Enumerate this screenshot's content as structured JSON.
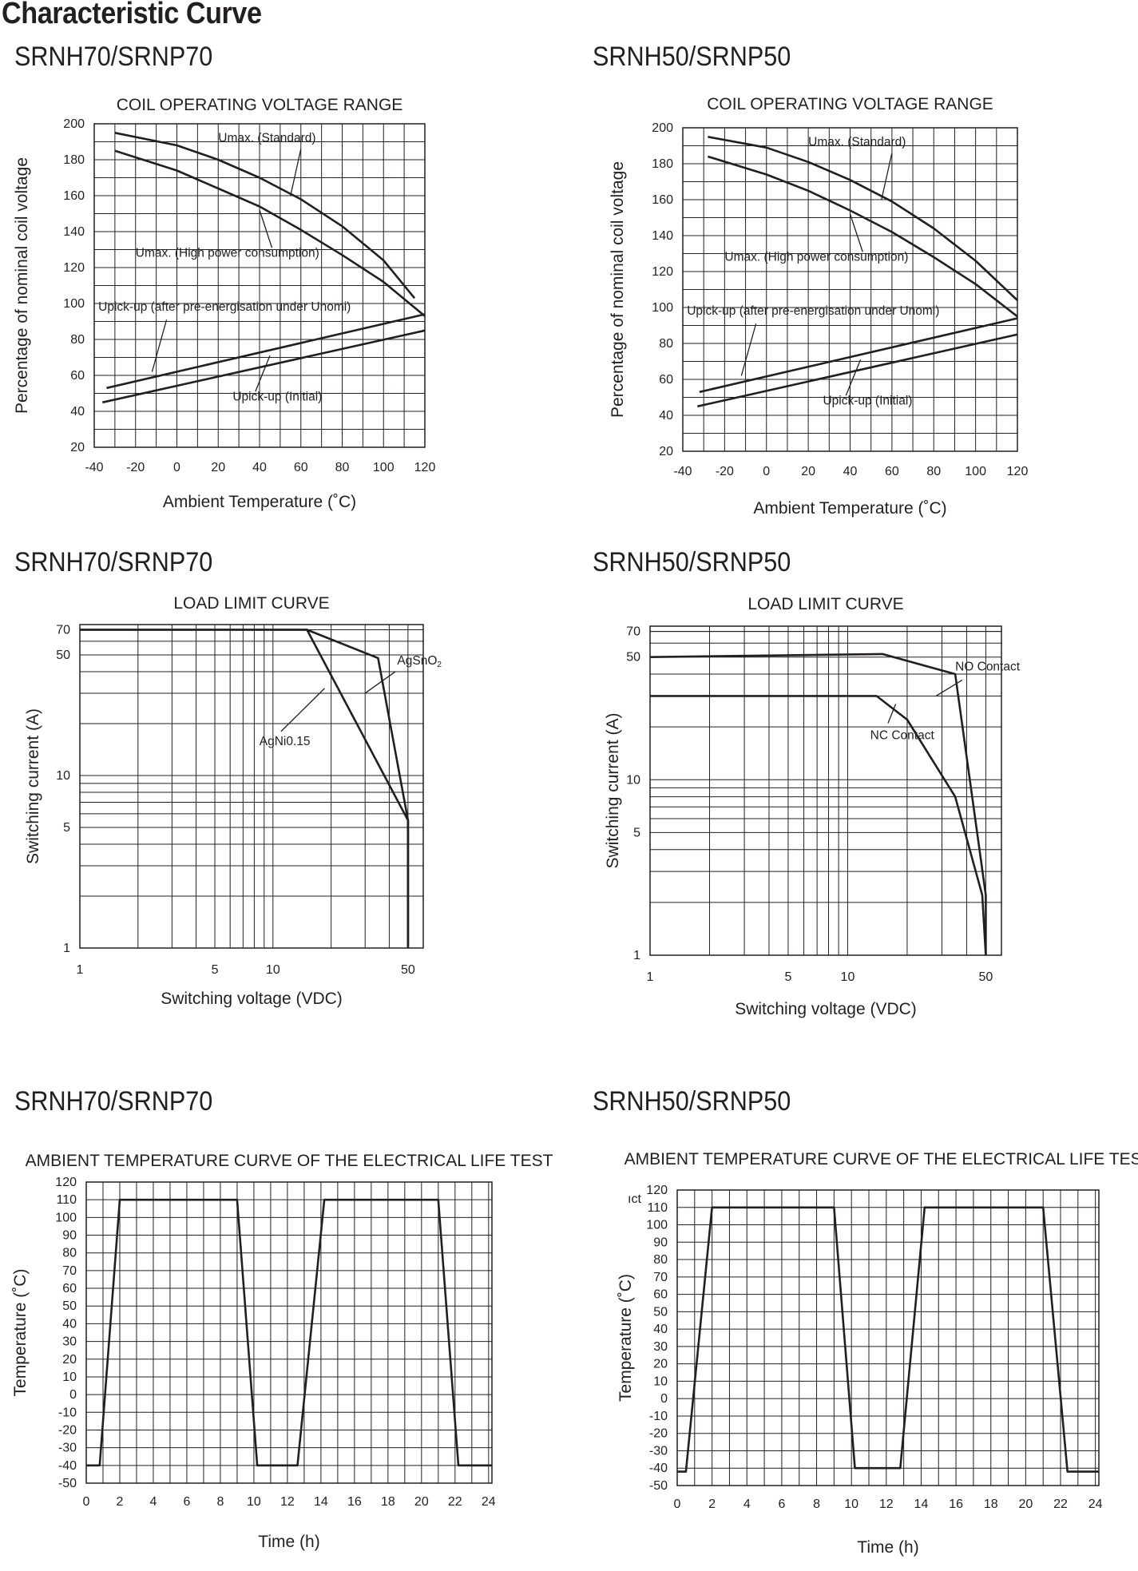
{
  "page_title": "Characteristic Curve",
  "chart_data": [
    {
      "id": "coil-70",
      "type": "line",
      "model": "SRNH70/SRNP70",
      "title": "COIL OPERATING VOLTAGE RANGE",
      "xlabel": "Ambient Temperature (˚C)",
      "ylabel": "Percentage of nominal coil voltage",
      "xlim": [
        -40,
        120
      ],
      "ylim": [
        20,
        200
      ],
      "xticks": [
        "-40",
        "-20",
        "0",
        "20",
        "40",
        "60",
        "80",
        "100",
        "120"
      ],
      "yticks": [
        "20",
        "40",
        "60",
        "80",
        "100",
        "120",
        "140",
        "160",
        "180",
        "200"
      ],
      "grid": true,
      "series": [
        {
          "name": "Umax. (Standard)",
          "x": [
            -30,
            0,
            20,
            40,
            60,
            80,
            100,
            115
          ],
          "y": [
            195,
            188,
            180,
            170,
            158,
            143,
            124,
            103
          ]
        },
        {
          "name": "Umax. (High power consumption)",
          "x": [
            -30,
            0,
            20,
            40,
            60,
            80,
            100,
            120
          ],
          "y": [
            185,
            174,
            164,
            154,
            141,
            127,
            112,
            93
          ]
        },
        {
          "name": "Upick-up (after pre-energisation under Unomi)",
          "x": [
            -34,
            120
          ],
          "y": [
            53,
            94
          ]
        },
        {
          "name": "Upick-up (Initial)",
          "x": [
            -36,
            120
          ],
          "y": [
            45,
            85
          ]
        }
      ],
      "annotations": [
        "Umax. (Standard)",
        "Umax. (High power consumption)",
        "Upick-up (after pre-energisation under Unomi)",
        "Upick-up (Initial)"
      ]
    },
    {
      "id": "coil-50",
      "type": "line",
      "model": "SRNH50/SRNP50",
      "title": "COIL OPERATING VOLTAGE RANGE",
      "xlabel": "Ambient Temperature (˚C)",
      "ylabel": "Percentage of nominal coil voltage",
      "xlim": [
        -40,
        120
      ],
      "ylim": [
        20,
        200
      ],
      "xticks": [
        "-40",
        "-20",
        "0",
        "20",
        "40",
        "60",
        "80",
        "100",
        "120"
      ],
      "yticks": [
        "20",
        "40",
        "60",
        "80",
        "100",
        "120",
        "140",
        "160",
        "180",
        "200"
      ],
      "grid": true,
      "series": [
        {
          "name": "Umax. (Standard)",
          "x": [
            -28,
            0,
            20,
            40,
            60,
            80,
            100,
            120
          ],
          "y": [
            195,
            189,
            181,
            171,
            159,
            144,
            126,
            104
          ]
        },
        {
          "name": "Umax. (High power consumption)",
          "x": [
            -28,
            0,
            20,
            40,
            60,
            80,
            100,
            120
          ],
          "y": [
            184,
            174,
            165,
            154,
            142,
            128,
            113,
            95
          ]
        },
        {
          "name": "Upick-up (after pre-energisation under Unomi)",
          "x": [
            -32,
            120
          ],
          "y": [
            53,
            94
          ]
        },
        {
          "name": "Upick-up (Initial)",
          "x": [
            -33,
            120
          ],
          "y": [
            45,
            85
          ]
        }
      ],
      "annotations": [
        "Umax. (Standard)",
        "Umax. (High power consumption)",
        "Upick-up (after pre-energisation under Unomi)",
        "Upick-up (Initial)"
      ]
    },
    {
      "id": "load-70",
      "type": "line",
      "scale": "log-log",
      "model": "SRNH70/SRNP70",
      "title": "LOAD LIMIT CURVE",
      "xlabel": "Switching voltage (VDC)",
      "ylabel": "Switching current (A)",
      "xlim": [
        1,
        60
      ],
      "ylim": [
        1,
        75
      ],
      "xticks": [
        1,
        5,
        10,
        50
      ],
      "yticks": [
        1,
        5,
        10,
        50,
        70
      ],
      "grid": true,
      "series": [
        {
          "name": "AgSnO2",
          "x": [
            1,
            15,
            35,
            50,
            50
          ],
          "y": [
            70,
            70,
            48,
            5.5,
            1
          ]
        },
        {
          "name": "AgNi0.15",
          "x": [
            1,
            15,
            50,
            50
          ],
          "y": [
            70,
            70,
            5.5,
            1
          ]
        }
      ],
      "annotations": [
        "AgSnO2",
        "AgNi0.15"
      ]
    },
    {
      "id": "load-50",
      "type": "line",
      "scale": "log-log",
      "model": "SRNH50/SRNP50",
      "title": "LOAD LIMIT CURVE",
      "xlabel": "Switching voltage (VDC)",
      "ylabel": "Switching current (A)",
      "xlim": [
        1,
        60
      ],
      "ylim": [
        1,
        75
      ],
      "xticks": [
        1,
        5,
        10,
        50
      ],
      "yticks": [
        1,
        5,
        10,
        50,
        70
      ],
      "grid": true,
      "series": [
        {
          "name": "NO Contact",
          "x": [
            1,
            15,
            35,
            50,
            50
          ],
          "y": [
            50,
            52,
            40,
            2.2,
            1
          ]
        },
        {
          "name": "NC Contact",
          "x": [
            1,
            14,
            20,
            35,
            48,
            50
          ],
          "y": [
            30,
            30,
            22,
            8,
            2.2,
            1
          ]
        }
      ],
      "annotations": [
        "NO Contact",
        "NC Contact"
      ]
    },
    {
      "id": "temp-70",
      "type": "line",
      "model": "SRNH70/SRNP70",
      "title": "AMBIENT TEMPERATURE CURVE OF THE ELECTRICAL LIFE TEST",
      "xlabel": "Time (h)",
      "ylabel": "Temperature (˚C)",
      "xlim": [
        0,
        24.2
      ],
      "ylim": [
        -50,
        120
      ],
      "xticks": [
        "0",
        "2",
        "4",
        "6",
        "8",
        "10",
        "12",
        "14",
        "16",
        "18",
        "20",
        "22",
        "24"
      ],
      "yticks": [
        "-50",
        "-40",
        "-30",
        "-20",
        "-10",
        "0",
        "10",
        "20",
        "30",
        "40",
        "50",
        "60",
        "70",
        "80",
        "90",
        "100",
        "110",
        "120"
      ],
      "grid": true,
      "series": [
        {
          "name": "",
          "x": [
            0,
            0.8,
            2,
            9,
            10.2,
            12.6,
            14.2,
            21,
            22.2,
            24.2
          ],
          "y": [
            -40,
            -40,
            110,
            110,
            -40,
            -40,
            110,
            110,
            -40,
            -40
          ]
        }
      ]
    },
    {
      "id": "temp-50",
      "type": "line",
      "model": "SRNH50/SRNP50",
      "title": "AMBIENT TEMPERATURE CURVE OF THE ELECTRICAL LIFE TEST",
      "xlabel": "Time (h)",
      "ylabel": "Temperature (˚C)",
      "xlim": [
        0,
        24.2
      ],
      "ylim": [
        -50,
        120
      ],
      "xticks": [
        "0",
        "2",
        "4",
        "6",
        "8",
        "10",
        "12",
        "14",
        "16",
        "18",
        "20",
        "22",
        "24"
      ],
      "yticks": [
        "-50",
        "-40",
        "-30",
        "-20",
        "-10",
        "0",
        "10",
        "20",
        "30",
        "40",
        "50",
        "60",
        "70",
        "80",
        "90",
        "100",
        "110",
        "120"
      ],
      "grid": true,
      "series": [
        {
          "name": "",
          "x": [
            0,
            0.5,
            2,
            9,
            10.2,
            12.8,
            14.2,
            21,
            22.4,
            24.2
          ],
          "y": [
            -42,
            -42,
            110,
            110,
            -40,
            -40,
            110,
            110,
            -42,
            -42
          ]
        }
      ],
      "stray_text": "ıct"
    }
  ]
}
